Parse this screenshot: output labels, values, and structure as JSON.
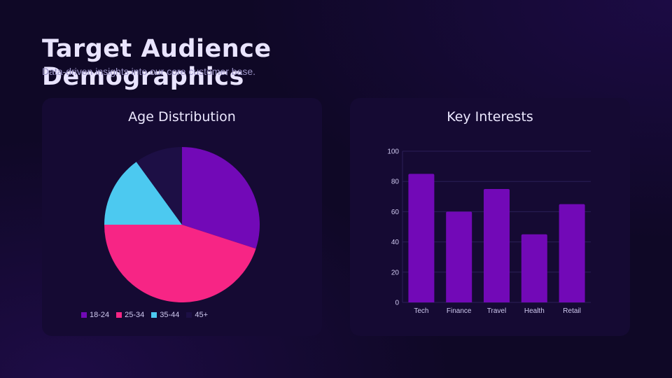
{
  "page": {
    "title": "Target Audience Demographics",
    "subtitle": "Data-driven insights into our core customer base."
  },
  "colors": {
    "card_bg": "#150a33",
    "grid": "#2b1f57",
    "axis_text": "#cfc9ef"
  },
  "chart_data": [
    {
      "type": "pie",
      "title": "Age Distribution",
      "categories": [
        "18-24",
        "25-34",
        "35-44",
        "45+"
      ],
      "values": [
        30,
        45,
        15,
        10
      ],
      "colors": [
        "#7209b7",
        "#f72585",
        "#4cc9f0",
        "#1d0f45"
      ],
      "legend": "bottom"
    },
    {
      "type": "bar",
      "title": "Key Interests",
      "categories": [
        "Tech",
        "Finance",
        "Travel",
        "Health",
        "Retail"
      ],
      "values": [
        85,
        60,
        75,
        45,
        65
      ],
      "color": "#7209b7",
      "ylim": [
        0,
        100
      ],
      "yticks": [
        0,
        20,
        40,
        60,
        80,
        100
      ],
      "grid": true
    }
  ]
}
